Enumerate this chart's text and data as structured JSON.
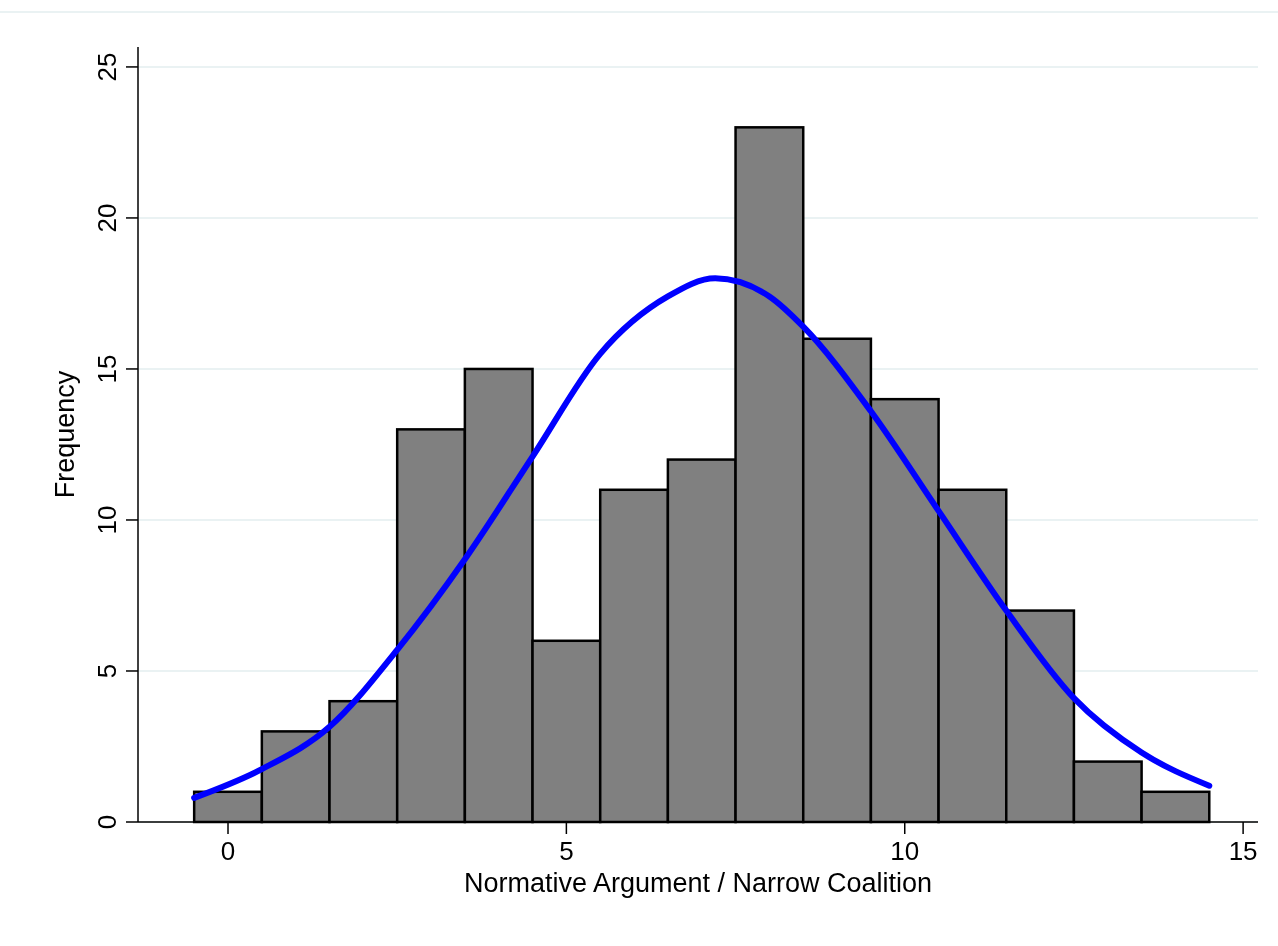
{
  "chart_data": {
    "type": "histogram",
    "xlabel": "Normative Argument / Narrow Coalition",
    "ylabel": "Frequency",
    "bins": [
      -0.5,
      0.5,
      1.5,
      2.5,
      3.5,
      4.5,
      5.5,
      6.5,
      7.5,
      8.5,
      9.5,
      10.5,
      11.5,
      12.5,
      13.5,
      14.5
    ],
    "values": [
      1,
      3,
      4,
      13,
      15,
      6,
      11,
      12,
      23,
      16,
      14,
      11,
      7,
      2,
      1
    ],
    "color": "#808080",
    "series": [
      {
        "type": "line",
        "color": "#0000ff",
        "x": [
          -0.5,
          0.5,
          1.5,
          2.5,
          3.5,
          4.5,
          5.5,
          6.5,
          7.2,
          8,
          8.5,
          9.5,
          10.5,
          11.5,
          12.5,
          13.5,
          14.5
        ],
        "values": [
          0.8,
          1.75,
          3.15,
          5.7,
          8.7,
          12.1,
          15.5,
          17.4,
          18,
          17.4,
          16.4,
          13.6,
          10.3,
          7,
          4.1,
          2.3,
          1.2
        ]
      }
    ],
    "xlim": [
      -1.33,
      15.22
    ],
    "xticks": [
      0,
      5,
      10,
      15
    ],
    "ylim": [
      0,
      25.66
    ],
    "yticks": [
      0,
      5,
      10,
      15,
      20,
      25
    ],
    "grid": "y",
    "marker": "none",
    "line_style": "solid"
  }
}
